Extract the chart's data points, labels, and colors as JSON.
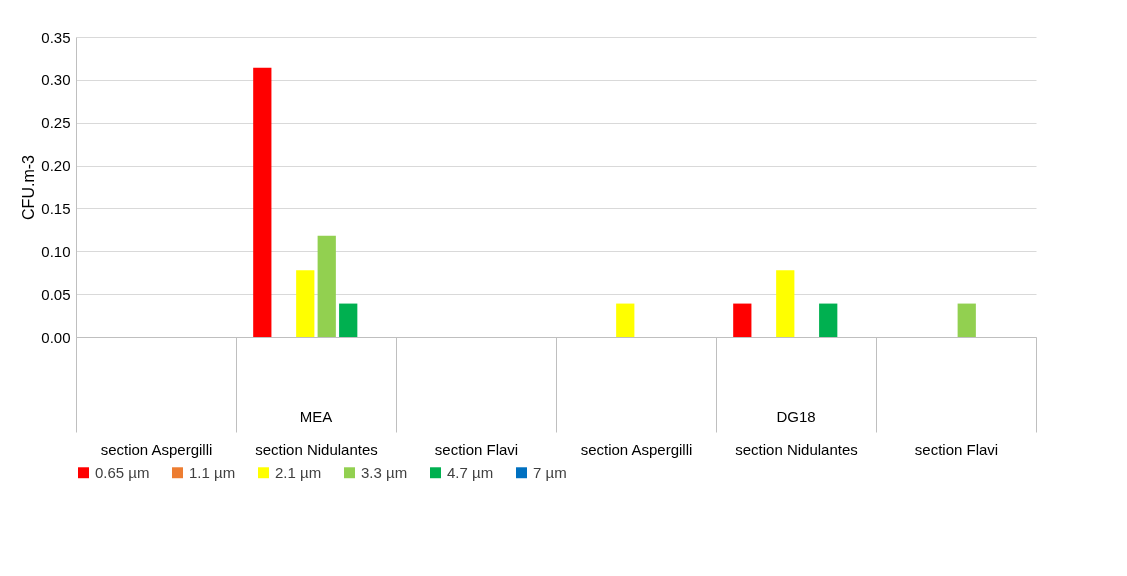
{
  "chart_data": {
    "type": "bar",
    "ylabel": "CFU.m-3",
    "categories": [
      "section Aspergilli",
      "section Nidulantes",
      "section Flavi",
      "section Aspergilli",
      "section Nidulantes",
      "section Flavi"
    ],
    "series": [
      {
        "name": "0.65 µm",
        "color": "#ff0000",
        "values": [
          0,
          0.314,
          0,
          0,
          0.039,
          0
        ]
      },
      {
        "name": "1.1 µm",
        "color": "#ed7d31",
        "values": [
          0,
          0,
          0,
          0,
          0,
          0
        ]
      },
      {
        "name": "2.1 µm",
        "color": "#ffff00",
        "values": [
          0,
          0.078,
          0,
          0.039,
          0.078,
          0
        ]
      },
      {
        "name": "3.3 µm",
        "color": "#92d050",
        "values": [
          0,
          0.118,
          0,
          0,
          0,
          0.039
        ]
      },
      {
        "name": "4.7 µm",
        "color": "#00b050",
        "values": [
          0,
          0.039,
          0,
          0,
          0.039,
          0
        ]
      },
      {
        "name": "7 µm",
        "color": "#0070c0",
        "values": [
          0,
          0,
          0,
          0,
          0,
          0
        ]
      }
    ],
    "annotations": [
      "MEA",
      "DG18"
    ],
    "ylim": [
      0,
      0.35
    ],
    "yticks": [
      {
        "value": 0,
        "label": "0.00"
      },
      0.05,
      {
        "value": 0.1,
        "label": "0.10"
      },
      0.15,
      {
        "value": 0.2,
        "label": "0.20"
      },
      0.25,
      {
        "value": 0.3,
        "label": "0.30"
      },
      0.35
    ],
    "grid": "y",
    "legend": "bottom"
  }
}
